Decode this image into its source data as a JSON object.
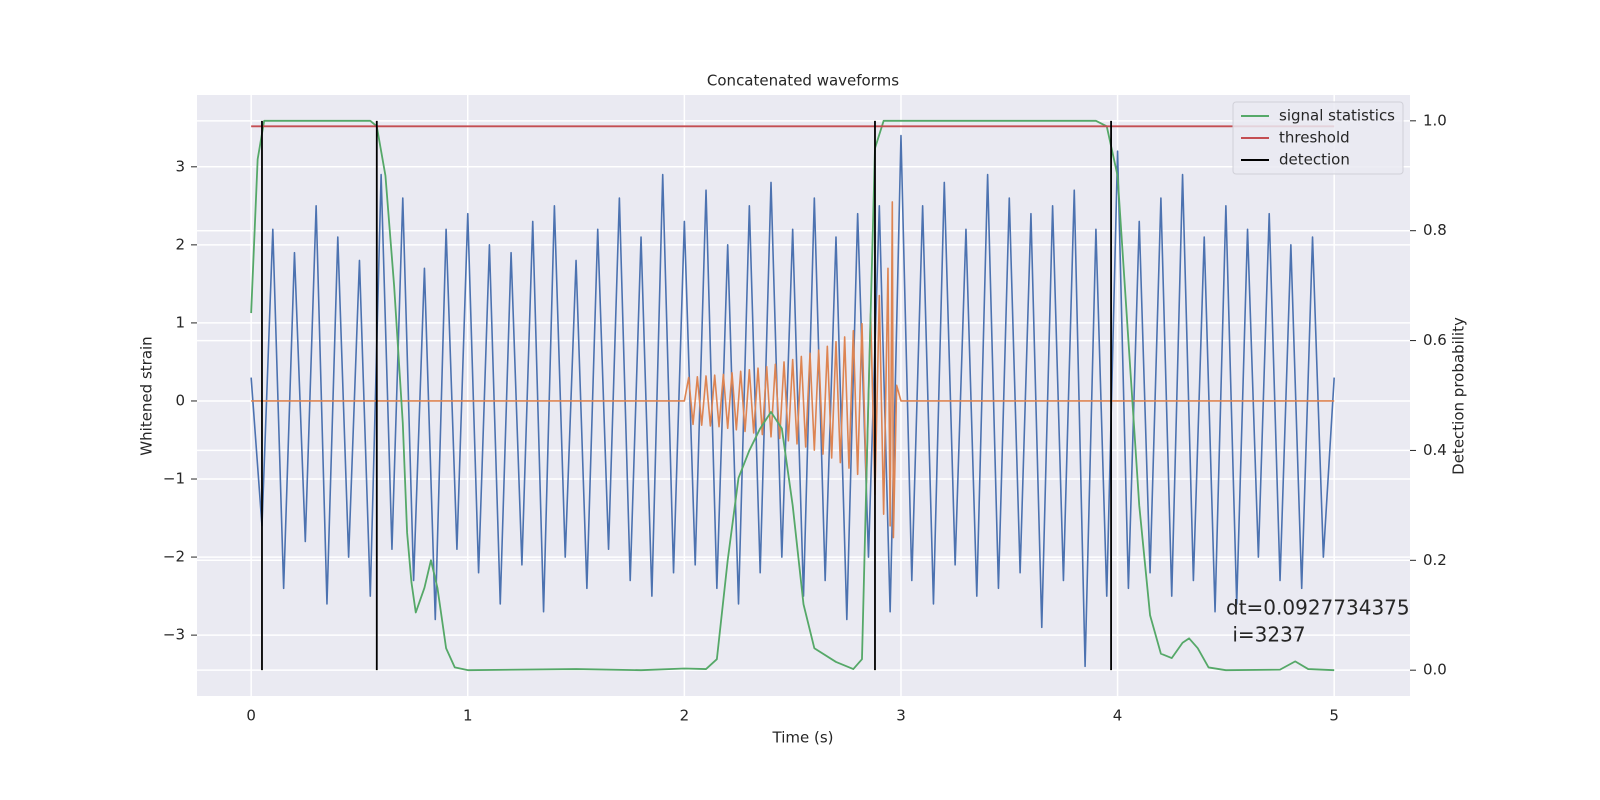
{
  "chart_data": {
    "type": "line",
    "title": "Concatenated waveforms",
    "x_label": "Time (s)",
    "y_label": "Whitened strain",
    "y2_label": "Detection probability",
    "annotations": [
      "dt=0.0927734375",
      " i=3237"
    ],
    "xlim": [
      -0.25,
      5.35
    ],
    "ylim": [
      -3.78,
      3.92
    ],
    "y2lim": [
      -0.047,
      1.047
    ],
    "xticks": [
      0,
      1,
      2,
      3,
      4,
      5
    ],
    "yticks": [
      {
        "value": -3,
        "label": "−3"
      },
      {
        "value": -2,
        "label": "−2"
      },
      {
        "value": -1,
        "label": "−1"
      },
      0,
      1,
      2,
      3
    ],
    "y2ticks": [
      {
        "value": 0,
        "label": "0.0"
      },
      {
        "value": 0.2,
        "label": "0.2"
      },
      {
        "value": 0.4,
        "label": "0.4"
      },
      {
        "value": 0.6,
        "label": "0.6"
      },
      {
        "value": 0.8,
        "label": "0.8"
      },
      {
        "value": 1,
        "label": "1.0"
      }
    ],
    "grid": true,
    "legend": "upper right",
    "series": [
      {
        "color": "#4c72b0",
        "x": [
          0,
          0.05,
          0.1,
          0.15,
          0.2,
          0.25,
          0.3,
          0.35,
          0.4,
          0.45,
          0.5,
          0.55,
          0.6,
          0.65,
          0.7,
          0.75,
          0.8,
          0.85,
          0.9,
          0.95,
          1,
          1.05,
          1.1,
          1.15,
          1.2,
          1.25,
          1.3,
          1.35,
          1.4,
          1.45,
          1.5,
          1.55,
          1.6,
          1.65,
          1.7,
          1.75,
          1.8,
          1.85,
          1.9,
          1.95,
          2,
          2.05,
          2.1,
          2.15,
          2.2,
          2.25,
          2.3,
          2.35,
          2.4,
          2.45,
          2.5,
          2.55,
          2.6,
          2.65,
          2.7,
          2.75,
          2.8,
          2.85,
          2.9,
          2.95,
          3,
          3.05,
          3.1,
          3.15,
          3.2,
          3.25,
          3.3,
          3.35,
          3.4,
          3.45,
          3.5,
          3.55,
          3.6,
          3.65,
          3.7,
          3.75,
          3.8,
          3.85,
          3.9,
          3.95,
          4,
          4.05,
          4.1,
          4.15,
          4.2,
          4.25,
          4.3,
          4.35,
          4.4,
          4.45,
          4.5,
          4.55,
          4.6,
          4.65,
          4.7,
          4.75,
          4.8,
          4.85,
          4.9,
          4.95,
          5
        ],
        "values": [
          0.3,
          -1.6,
          2.2,
          -2.4,
          1.9,
          -1.8,
          2.5,
          -2.6,
          2.1,
          -2.0,
          1.8,
          -2.5,
          2.9,
          -1.9,
          2.6,
          -2.3,
          1.7,
          -2.8,
          2.2,
          -1.9,
          2.4,
          -2.2,
          2.0,
          -2.6,
          1.9,
          -2.1,
          2.3,
          -2.7,
          2.5,
          -2.0,
          1.8,
          -2.4,
          2.2,
          -1.9,
          2.6,
          -2.3,
          2.1,
          -2.5,
          2.9,
          -2.2,
          2.3,
          -2.1,
          2.7,
          -2.4,
          2.0,
          -2.6,
          2.5,
          -2.2,
          2.8,
          -2.0,
          2.2,
          -2.5,
          2.6,
          -2.3,
          2.1,
          -2.8,
          2.4,
          -2.0,
          2.5,
          -2.7,
          3.4,
          -2.3,
          2.5,
          -2.6,
          2.8,
          -2.1,
          2.2,
          -2.5,
          2.9,
          -2.4,
          2.6,
          -2.2,
          2.4,
          -2.9,
          2.5,
          -2.3,
          2.7,
          -3.4,
          2.2,
          -2.5,
          3.2,
          -2.4,
          2.3,
          -2.2,
          2.6,
          -2.5,
          2.9,
          -2.3,
          2.1,
          -2.7,
          2.5,
          -2.6,
          2.2,
          -2.0,
          2.4,
          -2.3,
          2.0,
          -2.4,
          2.1,
          -2.0,
          0.3
        ]
      },
      {
        "color": "#dd8452",
        "x": [
          0,
          2.0,
          2.02,
          2.04,
          2.06,
          2.08,
          2.1,
          2.12,
          2.14,
          2.16,
          2.18,
          2.2,
          2.22,
          2.24,
          2.26,
          2.28,
          2.3,
          2.32,
          2.34,
          2.36,
          2.38,
          2.4,
          2.42,
          2.44,
          2.46,
          2.48,
          2.5,
          2.52,
          2.54,
          2.56,
          2.58,
          2.6,
          2.62,
          2.64,
          2.66,
          2.68,
          2.7,
          2.72,
          2.74,
          2.76,
          2.78,
          2.8,
          2.82,
          2.84,
          2.86,
          2.88,
          2.9,
          2.92,
          2.94,
          2.95,
          2.96,
          2.965,
          2.98,
          3.0,
          5.0
        ],
        "values": [
          0,
          0,
          0.3,
          -0.3,
          0.31,
          -0.31,
          0.32,
          -0.32,
          0.33,
          -0.33,
          0.34,
          -0.35,
          0.36,
          -0.37,
          0.38,
          -0.39,
          0.4,
          -0.41,
          0.42,
          -0.43,
          0.44,
          -0.46,
          0.47,
          -0.48,
          0.5,
          -0.51,
          0.53,
          -0.55,
          0.57,
          -0.59,
          0.61,
          -0.63,
          0.65,
          -0.68,
          0.7,
          -0.73,
          0.76,
          -0.79,
          0.82,
          -0.86,
          0.9,
          -0.94,
          0.99,
          -1.05,
          1.12,
          -1.2,
          1.35,
          -1.45,
          1.7,
          -1.6,
          2.55,
          -1.75,
          0.2,
          0,
          0
        ]
      },
      {
        "name": "signal statistics",
        "color": "#55a868",
        "axis": "y2",
        "x": [
          0,
          0.03,
          0.06,
          0.1,
          0.55,
          0.58,
          0.62,
          0.66,
          0.7,
          0.72,
          0.74,
          0.76,
          0.8,
          0.83,
          0.86,
          0.9,
          0.94,
          1.0,
          1.5,
          1.8,
          2.0,
          2.1,
          2.15,
          2.2,
          2.25,
          2.3,
          2.35,
          2.4,
          2.45,
          2.5,
          2.55,
          2.6,
          2.7,
          2.78,
          2.82,
          2.85,
          2.88,
          2.92,
          3.9,
          3.95,
          4.0,
          4.05,
          4.1,
          4.15,
          4.2,
          4.25,
          4.3,
          4.33,
          4.37,
          4.42,
          4.5,
          4.75,
          4.82,
          4.88,
          5.0
        ],
        "values": [
          0.65,
          0.93,
          1.0,
          1.0,
          1.0,
          0.99,
          0.9,
          0.7,
          0.45,
          0.25,
          0.16,
          0.105,
          0.15,
          0.2,
          0.15,
          0.04,
          0.005,
          0.0,
          0.002,
          0.0,
          0.003,
          0.002,
          0.02,
          0.2,
          0.35,
          0.4,
          0.44,
          0.47,
          0.44,
          0.3,
          0.12,
          0.04,
          0.015,
          0.002,
          0.02,
          0.5,
          0.95,
          1.0,
          1.0,
          0.99,
          0.9,
          0.6,
          0.3,
          0.1,
          0.03,
          0.022,
          0.05,
          0.058,
          0.04,
          0.005,
          0.0,
          0.001,
          0.016,
          0.002,
          0.0
        ]
      },
      {
        "name": "threshold",
        "color": "#c44e52",
        "axis": "y2",
        "x": [
          0,
          5
        ],
        "values": [
          0.99,
          0.99
        ]
      },
      {
        "name": "detection",
        "color": "#000000",
        "axis": "y2",
        "x": [
          0.05,
          0.05,
          null,
          0.58,
          0.58,
          null,
          2.88,
          2.88,
          null,
          3.97,
          3.97
        ],
        "values": [
          0,
          1,
          null,
          0,
          1,
          null,
          0,
          1,
          null,
          0,
          1
        ]
      }
    ]
  }
}
